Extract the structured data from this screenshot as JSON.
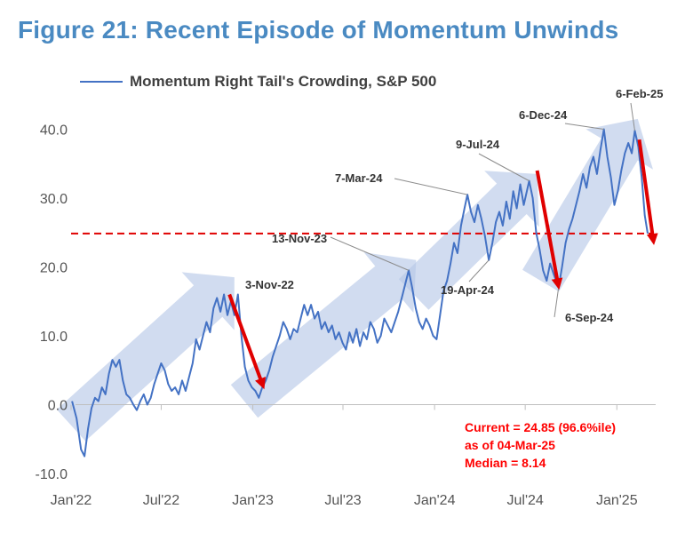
{
  "title": "Figure 21: Recent Episode of Momentum Unwinds",
  "chart_data": {
    "type": "line",
    "legend_position": "top-left",
    "grid": false,
    "series": [
      {
        "name": "Momentum Right Tail's Crowding, S&P 500",
        "color": "#4472c4",
        "points": [
          [
            "2022-01-03",
            0.5
          ],
          [
            "2022-01-12",
            -2.0
          ],
          [
            "2022-01-21",
            -6.5
          ],
          [
            "2022-01-28",
            -7.5
          ],
          [
            "2022-02-04",
            -3.5
          ],
          [
            "2022-02-11",
            -0.5
          ],
          [
            "2022-02-18",
            1.0
          ],
          [
            "2022-02-25",
            0.5
          ],
          [
            "2022-03-04",
            2.5
          ],
          [
            "2022-03-11",
            1.5
          ],
          [
            "2022-03-18",
            4.5
          ],
          [
            "2022-03-25",
            6.5
          ],
          [
            "2022-04-01",
            5.5
          ],
          [
            "2022-04-08",
            6.5
          ],
          [
            "2022-04-15",
            3.5
          ],
          [
            "2022-04-22",
            1.5
          ],
          [
            "2022-04-29",
            1.0
          ],
          [
            "2022-05-06",
            0.0
          ],
          [
            "2022-05-13",
            -0.8
          ],
          [
            "2022-05-20",
            0.5
          ],
          [
            "2022-05-27",
            1.5
          ],
          [
            "2022-06-03",
            0.0
          ],
          [
            "2022-06-10",
            1.0
          ],
          [
            "2022-06-17",
            3.0
          ],
          [
            "2022-06-24",
            4.5
          ],
          [
            "2022-07-01",
            6.0
          ],
          [
            "2022-07-08",
            5.0
          ],
          [
            "2022-07-15",
            3.0
          ],
          [
            "2022-07-22",
            2.0
          ],
          [
            "2022-07-29",
            2.5
          ],
          [
            "2022-08-05",
            1.5
          ],
          [
            "2022-08-12",
            3.5
          ],
          [
            "2022-08-19",
            2.0
          ],
          [
            "2022-08-26",
            4.0
          ],
          [
            "2022-09-02",
            6.0
          ],
          [
            "2022-09-09",
            9.5
          ],
          [
            "2022-09-16",
            8.0
          ],
          [
            "2022-09-23",
            10.0
          ],
          [
            "2022-09-30",
            12.0
          ],
          [
            "2022-10-07",
            10.5
          ],
          [
            "2022-10-14",
            14.0
          ],
          [
            "2022-10-21",
            15.5
          ],
          [
            "2022-10-28",
            13.5
          ],
          [
            "2022-11-04",
            16.0
          ],
          [
            "2022-11-11",
            13.0
          ],
          [
            "2022-11-18",
            15.0
          ],
          [
            "2022-11-25",
            13.0
          ],
          [
            "2022-12-02",
            16.0
          ],
          [
            "2022-12-09",
            10.0
          ],
          [
            "2022-12-16",
            5.5
          ],
          [
            "2022-12-23",
            3.5
          ],
          [
            "2022-12-30",
            2.5
          ],
          [
            "2023-01-06",
            2.0
          ],
          [
            "2023-01-13",
            1.0
          ],
          [
            "2023-01-20",
            2.5
          ],
          [
            "2023-01-27",
            3.5
          ],
          [
            "2023-02-03",
            5.0
          ],
          [
            "2023-02-10",
            7.0
          ],
          [
            "2023-02-17",
            8.5
          ],
          [
            "2023-02-24",
            10.0
          ],
          [
            "2023-03-03",
            12.0
          ],
          [
            "2023-03-10",
            11.0
          ],
          [
            "2023-03-17",
            9.5
          ],
          [
            "2023-03-24",
            11.0
          ],
          [
            "2023-03-31",
            10.5
          ],
          [
            "2023-04-07",
            12.5
          ],
          [
            "2023-04-14",
            14.5
          ],
          [
            "2023-04-21",
            13.0
          ],
          [
            "2023-04-28",
            14.5
          ],
          [
            "2023-05-05",
            12.5
          ],
          [
            "2023-05-12",
            13.5
          ],
          [
            "2023-05-19",
            11.0
          ],
          [
            "2023-05-26",
            12.0
          ],
          [
            "2023-06-02",
            10.5
          ],
          [
            "2023-06-09",
            11.5
          ],
          [
            "2023-06-16",
            9.5
          ],
          [
            "2023-06-23",
            10.5
          ],
          [
            "2023-06-30",
            9.0
          ],
          [
            "2023-07-07",
            8.0
          ],
          [
            "2023-07-14",
            10.5
          ],
          [
            "2023-07-21",
            9.0
          ],
          [
            "2023-07-28",
            11.0
          ],
          [
            "2023-08-04",
            8.5
          ],
          [
            "2023-08-11",
            10.5
          ],
          [
            "2023-08-18",
            9.5
          ],
          [
            "2023-08-25",
            12.0
          ],
          [
            "2023-09-01",
            11.0
          ],
          [
            "2023-09-08",
            9.0
          ],
          [
            "2023-09-15",
            10.0
          ],
          [
            "2023-09-22",
            12.5
          ],
          [
            "2023-09-29",
            11.5
          ],
          [
            "2023-10-06",
            10.5
          ],
          [
            "2023-10-13",
            12.0
          ],
          [
            "2023-10-20",
            13.5
          ],
          [
            "2023-10-27",
            15.5
          ],
          [
            "2023-11-03",
            17.5
          ],
          [
            "2023-11-10",
            19.5
          ],
          [
            "2023-11-17",
            17.0
          ],
          [
            "2023-11-24",
            14.0
          ],
          [
            "2023-12-01",
            12.0
          ],
          [
            "2023-12-08",
            11.0
          ],
          [
            "2023-12-15",
            12.5
          ],
          [
            "2023-12-22",
            11.5
          ],
          [
            "2023-12-29",
            10.0
          ],
          [
            "2024-01-05",
            9.5
          ],
          [
            "2024-01-12",
            13.0
          ],
          [
            "2024-01-19",
            16.5
          ],
          [
            "2024-01-26",
            18.0
          ],
          [
            "2024-02-02",
            20.5
          ],
          [
            "2024-02-09",
            23.5
          ],
          [
            "2024-02-16",
            22.0
          ],
          [
            "2024-02-23",
            26.0
          ],
          [
            "2024-03-01",
            28.5
          ],
          [
            "2024-03-07",
            30.5
          ],
          [
            "2024-03-14",
            28.0
          ],
          [
            "2024-03-21",
            26.5
          ],
          [
            "2024-03-28",
            29.0
          ],
          [
            "2024-04-04",
            27.0
          ],
          [
            "2024-04-11",
            24.5
          ],
          [
            "2024-04-19",
            21.0
          ],
          [
            "2024-04-26",
            23.5
          ],
          [
            "2024-05-03",
            26.5
          ],
          [
            "2024-05-10",
            28.0
          ],
          [
            "2024-05-17",
            26.0
          ],
          [
            "2024-05-24",
            29.5
          ],
          [
            "2024-05-31",
            27.0
          ],
          [
            "2024-06-07",
            31.0
          ],
          [
            "2024-06-14",
            28.5
          ],
          [
            "2024-06-21",
            32.0
          ],
          [
            "2024-06-28",
            29.0
          ],
          [
            "2024-07-09",
            32.5
          ],
          [
            "2024-07-16",
            30.0
          ],
          [
            "2024-07-23",
            25.0
          ],
          [
            "2024-07-30",
            22.5
          ],
          [
            "2024-08-06",
            19.5
          ],
          [
            "2024-08-13",
            18.0
          ],
          [
            "2024-08-20",
            20.5
          ],
          [
            "2024-08-27",
            19.0
          ],
          [
            "2024-09-06",
            17.0
          ],
          [
            "2024-09-13",
            20.0
          ],
          [
            "2024-09-20",
            23.5
          ],
          [
            "2024-09-27",
            25.5
          ],
          [
            "2024-10-04",
            27.0
          ],
          [
            "2024-10-11",
            29.0
          ],
          [
            "2024-10-18",
            31.0
          ],
          [
            "2024-10-25",
            33.5
          ],
          [
            "2024-11-01",
            31.5
          ],
          [
            "2024-11-08",
            34.5
          ],
          [
            "2024-11-15",
            36.0
          ],
          [
            "2024-11-22",
            33.5
          ],
          [
            "2024-11-29",
            37.0
          ],
          [
            "2024-12-06",
            40.0
          ],
          [
            "2024-12-13",
            36.0
          ],
          [
            "2024-12-20",
            33.0
          ],
          [
            "2024-12-27",
            29.0
          ],
          [
            "2025-01-03",
            31.0
          ],
          [
            "2025-01-10",
            34.0
          ],
          [
            "2025-01-17",
            36.5
          ],
          [
            "2025-01-24",
            38.0
          ],
          [
            "2025-01-31",
            36.5
          ],
          [
            "2025-02-06",
            39.8
          ],
          [
            "2025-02-13",
            37.5
          ],
          [
            "2025-02-20",
            33.0
          ],
          [
            "2025-02-26",
            27.5
          ],
          [
            "2025-03-04",
            24.85
          ]
        ]
      }
    ],
    "y_axis": {
      "range": [
        -10,
        42
      ],
      "ticks": [
        {
          "value": 40,
          "label": "40.0"
        },
        {
          "value": 30,
          "label": "30.0"
        },
        {
          "value": 20,
          "label": "20.0"
        },
        {
          "value": 10,
          "label": "10.0"
        },
        {
          "value": 0,
          "label": "0.0"
        },
        {
          "value": -10,
          "label": "-10.0"
        }
      ]
    },
    "x_axis": {
      "range": [
        "2022-01-01",
        "2025-03-20"
      ],
      "ticks": [
        {
          "date": "2022-01-01",
          "label": "Jan'22"
        },
        {
          "date": "2022-07-01",
          "label": "Jul'22"
        },
        {
          "date": "2023-01-01",
          "label": "Jan'23"
        },
        {
          "date": "2023-07-01",
          "label": "Jul'23"
        },
        {
          "date": "2024-01-01",
          "label": "Jan'24"
        },
        {
          "date": "2024-07-01",
          "label": "Jul'24"
        },
        {
          "date": "2025-01-01",
          "label": "Jan'25"
        }
      ]
    },
    "reference_line": {
      "value": 24.85,
      "color": "#e00000",
      "style": "dashed"
    },
    "annotations": [
      {
        "label": "3-Nov-22",
        "date": "2022-11-04",
        "value": 16.0
      },
      {
        "label": "13-Nov-23",
        "date": "2023-11-10",
        "value": 19.5
      },
      {
        "label": "7-Mar-24",
        "date": "2024-03-07",
        "value": 30.5
      },
      {
        "label": "9-Jul-24",
        "date": "2024-07-09",
        "value": 32.5
      },
      {
        "label": "19-Apr-24",
        "date": "2024-04-19",
        "value": 21.0
      },
      {
        "label": "6-Sep-24",
        "date": "2024-09-06",
        "value": 17.0
      },
      {
        "label": "6-Dec-24",
        "date": "2024-12-06",
        "value": 40.0
      },
      {
        "label": "6-Feb-25",
        "date": "2025-02-06",
        "value": 39.8
      }
    ],
    "trend_arrows": [
      {
        "from": [
          "2022-01-01",
          -3.0
        ],
        "to": [
          "2022-11-25",
          18.5
        ]
      },
      {
        "from": [
          "2022-12-15",
          0.5
        ],
        "to": [
          "2023-11-25",
          21.0
        ]
      },
      {
        "from": [
          "2023-11-20",
          16.0
        ],
        "to": [
          "2024-07-25",
          33.5
        ]
      },
      {
        "from": [
          "2024-08-01",
          18.0
        ],
        "to": [
          "2025-02-12",
          41.5
        ]
      }
    ],
    "unwind_arrows": [
      {
        "from": [
          "2022-11-15",
          16.0
        ],
        "to": [
          "2023-01-20",
          3.0
        ]
      },
      {
        "from": [
          "2024-07-25",
          34.0
        ],
        "to": [
          "2024-09-05",
          17.5
        ]
      },
      {
        "from": [
          "2025-02-15",
          38.5
        ],
        "to": [
          "2025-03-15",
          24.0
        ]
      }
    ],
    "stats": [
      "Current = 24.85 (96.6%ile)",
      "as of 04-Mar-25",
      "Median = 8.14"
    ]
  }
}
